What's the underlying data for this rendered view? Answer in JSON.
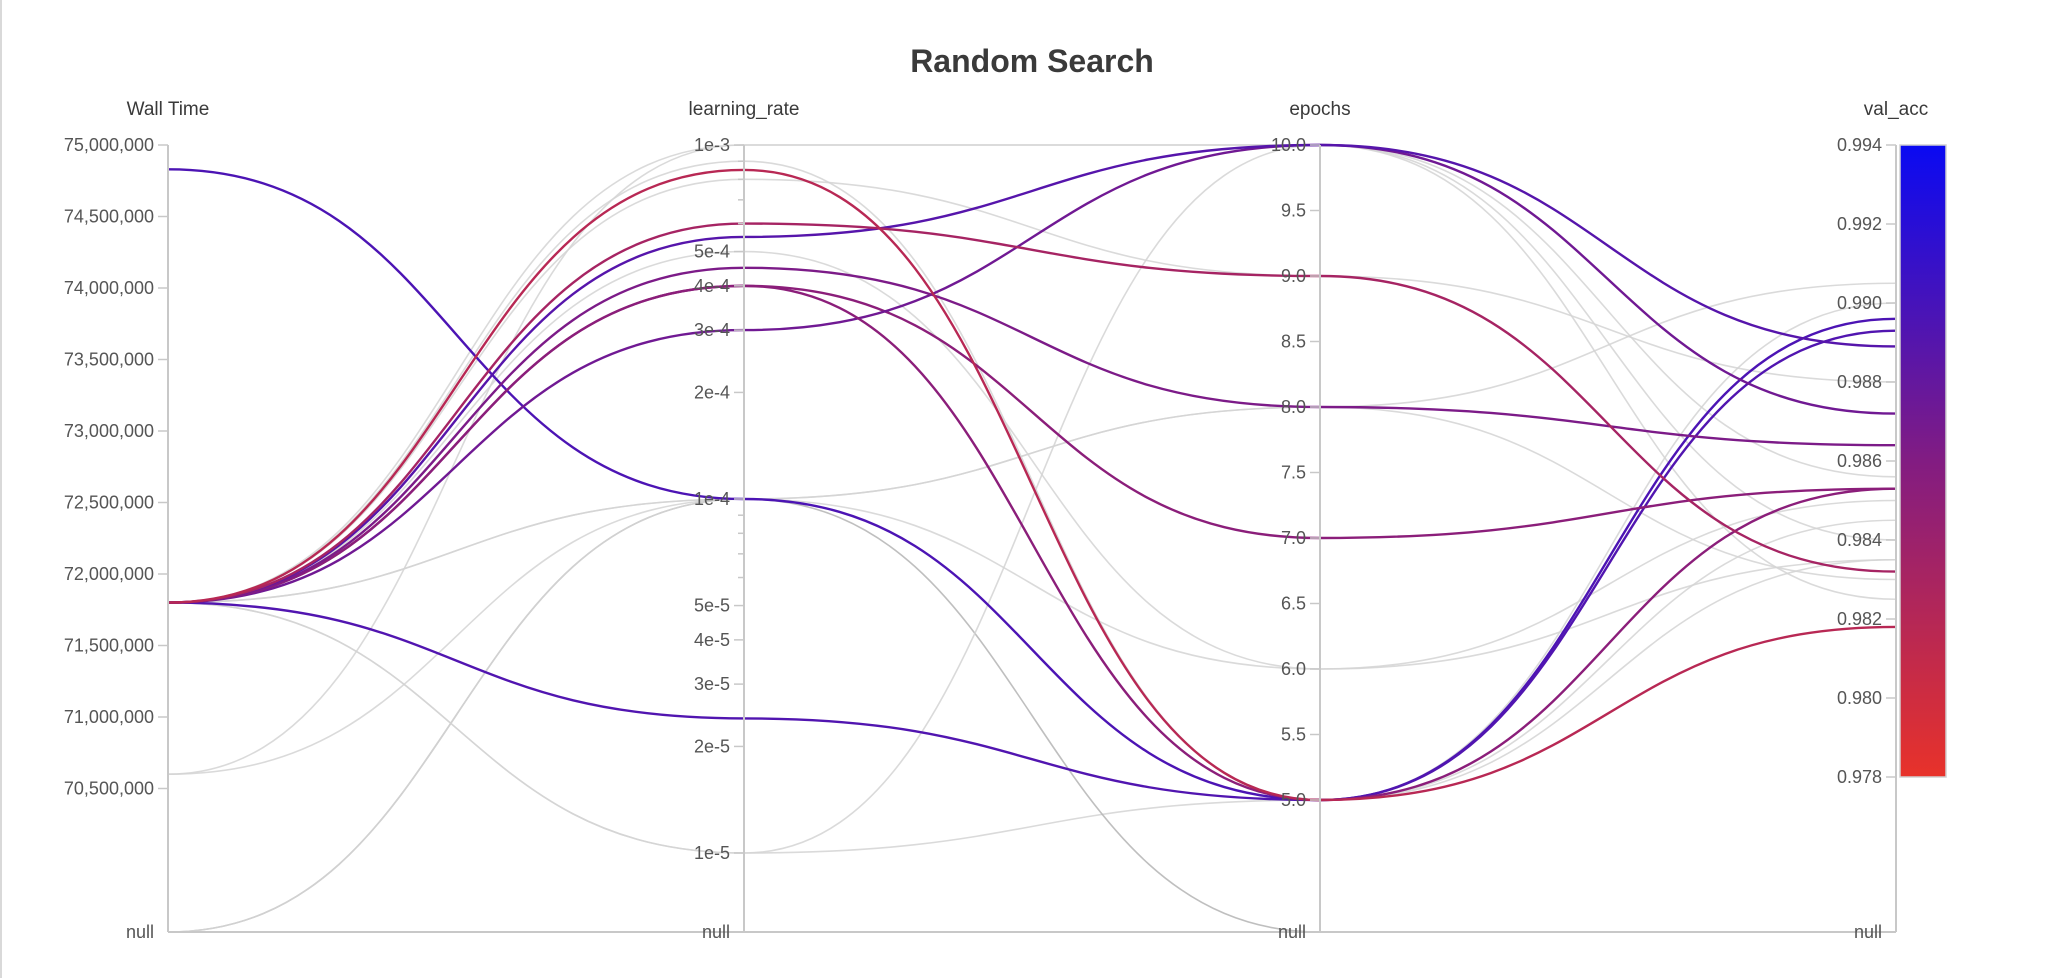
{
  "chart_data": {
    "type": "parallel_coordinates",
    "title": "Random Search",
    "axes": [
      {
        "name": "Wall Time",
        "scale": "linear",
        "range": [
          70000000,
          75000000
        ],
        "ticks": [
          {
            "v": 75000000,
            "label": "75,000,000"
          },
          {
            "v": 74500000,
            "label": "74,500,000"
          },
          {
            "v": 74000000,
            "label": "74,000,000"
          },
          {
            "v": 73500000,
            "label": "73,500,000"
          },
          {
            "v": 73000000,
            "label": "73,000,000"
          },
          {
            "v": 72500000,
            "label": "72,500,000"
          },
          {
            "v": 72000000,
            "label": "72,000,000"
          },
          {
            "v": 71500000,
            "label": "71,500,000"
          },
          {
            "v": 71000000,
            "label": "71,000,000"
          },
          {
            "v": 70500000,
            "label": "70,500,000"
          }
        ],
        "null_label": "null"
      },
      {
        "name": "learning_rate",
        "scale": "log",
        "range": [
          1e-05,
          0.001
        ],
        "ticks": [
          {
            "v": 0.001,
            "label": "1e-3"
          },
          {
            "v": 0.0005,
            "label": "5e-4"
          },
          {
            "v": 0.0004,
            "label": "4e-4"
          },
          {
            "v": 0.0003,
            "label": "3e-4"
          },
          {
            "v": 0.0002,
            "label": "2e-4"
          },
          {
            "v": 0.0001,
            "label": "1e-4"
          },
          {
            "v": 5e-05,
            "label": "5e-5"
          },
          {
            "v": 4e-05,
            "label": "4e-5"
          },
          {
            "v": 3e-05,
            "label": "3e-5"
          },
          {
            "v": 2e-05,
            "label": "2e-5"
          },
          {
            "v": 1e-05,
            "label": "1e-5"
          }
        ],
        "minor_ticks": [
          0.0009,
          0.0008,
          0.0007,
          0.0006,
          9e-05,
          8e-05,
          7e-05,
          6e-05
        ],
        "null_label": "null"
      },
      {
        "name": "epochs",
        "scale": "linear",
        "range": [
          5,
          10
        ],
        "ticks": [
          {
            "v": 10,
            "label": "10.0"
          },
          {
            "v": 9.5,
            "label": "9.5"
          },
          {
            "v": 9,
            "label": "9.0"
          },
          {
            "v": 8.5,
            "label": "8.5"
          },
          {
            "v": 8,
            "label": "8.0"
          },
          {
            "v": 7.5,
            "label": "7.5"
          },
          {
            "v": 7,
            "label": "7.0"
          },
          {
            "v": 6.5,
            "label": "6.5"
          },
          {
            "v": 6,
            "label": "6.0"
          },
          {
            "v": 5.5,
            "label": "5.5"
          },
          {
            "v": 5,
            "label": "5.0"
          }
        ],
        "null_label": "null"
      },
      {
        "name": "val_acc",
        "scale": "linear",
        "range": [
          0.978,
          0.994
        ],
        "ticks": [
          {
            "v": 0.994,
            "label": "0.994"
          },
          {
            "v": 0.992,
            "label": "0.992"
          },
          {
            "v": 0.99,
            "label": "0.990"
          },
          {
            "v": 0.988,
            "label": "0.988"
          },
          {
            "v": 0.986,
            "label": "0.986"
          },
          {
            "v": 0.984,
            "label": "0.984"
          },
          {
            "v": 0.982,
            "label": "0.982"
          },
          {
            "v": 0.98,
            "label": "0.980"
          },
          {
            "v": 0.978,
            "label": "0.978"
          }
        ],
        "null_label": "null"
      }
    ],
    "color_scale": {
      "metric": "val_acc",
      "min": 0.978,
      "max": 0.994,
      "low_color": "#e8322a",
      "high_color": "#0a0af2"
    },
    "inactive_line_color": "#d4d4d4",
    "runs": [
      {
        "values": [
          74830000,
          0.0001,
          5,
          0.9896
        ],
        "active": true
      },
      {
        "values": [
          71800000,
          2.4e-05,
          5,
          0.9893
        ],
        "active": true
      },
      {
        "values": [
          71800000,
          0.0004,
          7,
          0.9853
        ],
        "active": true
      },
      {
        "values": [
          71800000,
          0.0003,
          10,
          0.9872
        ],
        "active": true
      },
      {
        "values": [
          71800000,
          0.0004,
          5,
          0.9853
        ],
        "active": true
      },
      {
        "values": [
          71800000,
          0.00045,
          8,
          0.9864
        ],
        "active": true
      },
      {
        "values": [
          71800000,
          0.00055,
          10,
          0.9889
        ],
        "active": true
      },
      {
        "values": [
          71800000,
          0.0006,
          9,
          0.9832
        ],
        "active": true
      },
      {
        "values": [
          71800000,
          0.00085,
          5,
          0.9818
        ],
        "active": true
      },
      {
        "values": [
          71800000,
          0.001,
          10,
          0.9856
        ],
        "active": false
      },
      {
        "values": [
          71800000,
          0.0001,
          8,
          0.9905
        ],
        "active": false
      },
      {
        "values": [
          71800000,
          1e-05,
          5,
          0.99
        ],
        "active": false
      },
      {
        "values": [
          71800000,
          0.0001,
          6,
          0.9835
        ],
        "active": false
      },
      {
        "values": [
          71800000,
          0.0009,
          5,
          0.9835
        ],
        "active": false
      },
      {
        "values": [
          70600000,
          0.001,
          10,
          0.984
        ],
        "active": false
      },
      {
        "values": [
          70600000,
          0.0001,
          8,
          0.983
        ],
        "active": false
      },
      {
        "values": [
          null,
          0.0001,
          null,
          null
        ],
        "active": false,
        "dark": true
      },
      {
        "values": [
          null,
          0.0001,
          5,
          0.9845
        ],
        "active": false
      },
      {
        "values": [
          71800000,
          0.0008,
          9,
          0.988
        ],
        "active": false
      },
      {
        "values": [
          71800000,
          1e-05,
          10,
          0.9825
        ],
        "active": false
      },
      {
        "values": [
          71800000,
          0.0005,
          6,
          0.985
        ],
        "active": false
      }
    ]
  }
}
